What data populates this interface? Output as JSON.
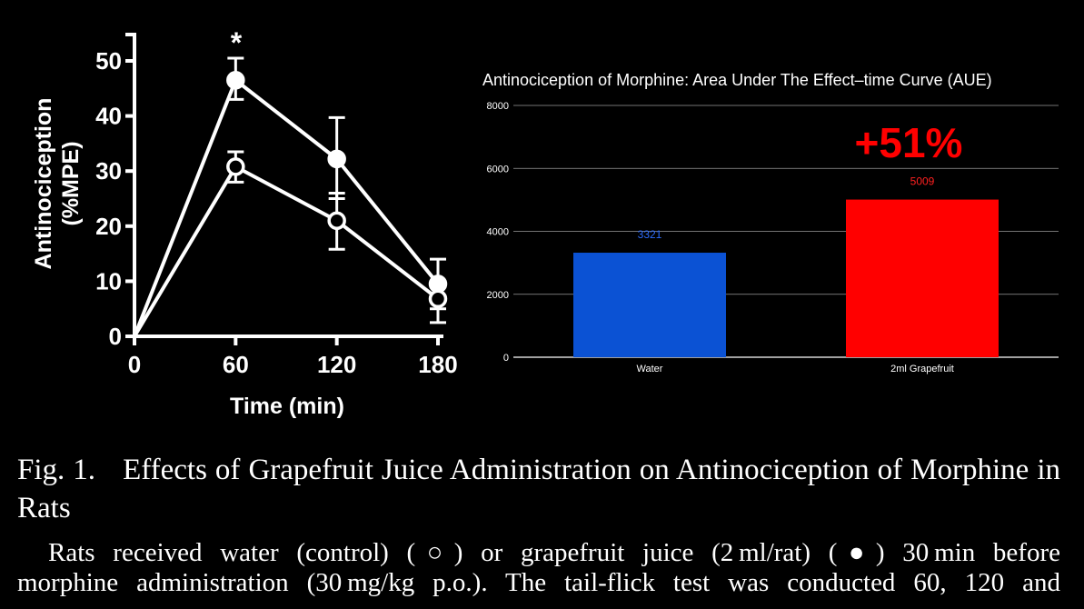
{
  "chart_data": [
    {
      "type": "line",
      "xlabel": "Time (min)",
      "ylabel": "Antinociception",
      "ylabel_unit": "(%MPE)",
      "x": [
        0,
        60,
        120,
        180
      ],
      "x_ticks": [
        "0",
        "60",
        "120",
        "180"
      ],
      "xlim": [
        0,
        180
      ],
      "ylim": [
        0,
        50
      ],
      "y_ticks": [
        "0",
        "10",
        "20",
        "30",
        "40",
        "50"
      ],
      "grid": false,
      "series": [
        {
          "marker": "filled-circle",
          "values": [
            0,
            46.5,
            32.2,
            9.5
          ],
          "err_upper": [
            0,
            50.5,
            39.7,
            14.0
          ],
          "err_lower": [
            0,
            43.0,
            25.0,
            5.0
          ]
        },
        {
          "marker": "open-circle",
          "values": [
            0,
            30.8,
            21.0,
            6.8
          ],
          "err_upper": [
            0,
            33.5,
            26.0,
            9.5
          ],
          "err_lower": [
            0,
            28.0,
            15.8,
            2.5
          ]
        }
      ],
      "annotations": [
        {
          "text": "*",
          "x": 60
        }
      ],
      "colors": {
        "line": "#ffffff",
        "background": "#000000"
      }
    },
    {
      "type": "bar",
      "title": "Antinociception of Morphine: Area Under The Effect–time Curve (AUE)",
      "categories": [
        "Water",
        "2ml Grapefruit"
      ],
      "values": [
        3321,
        5009
      ],
      "value_labels": [
        "3321",
        "5009"
      ],
      "bar_colors": [
        "#0b52d4",
        "#ff0000"
      ],
      "label_colors": [
        "#2c6cff",
        "#ff2020"
      ],
      "ylim": [
        0,
        8000
      ],
      "y_ticks": [
        "0",
        "2000",
        "4000",
        "6000",
        "8000"
      ],
      "grid": true,
      "annotation": {
        "text": "+51%",
        "color": "#ff0000"
      }
    }
  ],
  "caption": {
    "fig_num": "Fig. 1.",
    "fig_title": "Effects of Grapefruit Juice Administration on Antinociception of Morphine in Rats",
    "text_line1": "Rats received water (control) (○) or grapefruit juice (2 ml/rat) (●) 30 min before",
    "text_line2": "morphine administration (30 mg/kg p.o.). The tail-flick test was conducted 60, 120 and"
  }
}
